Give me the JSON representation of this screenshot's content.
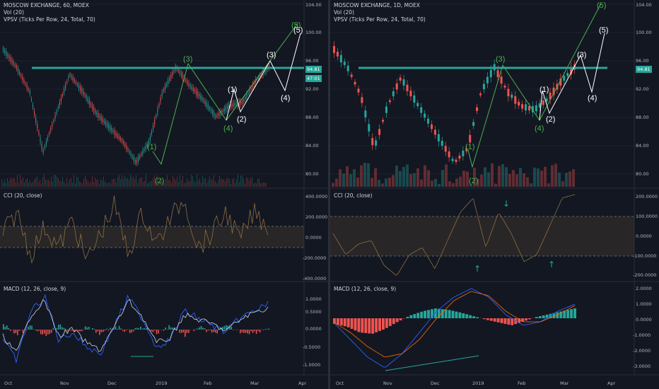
{
  "charts": [
    {
      "id": "left",
      "title": "MOSCOW EXCHANGE, 60, MOEX",
      "vol": "Vol (20)",
      "vpsv": "VPSV (Ticks Per Row, 24, Total, 70)",
      "cci": "CCI (20, close)",
      "macd": "MACD (12, 26, close, 9)",
      "price_badge": "94.81",
      "time_badge": "47:01",
      "price_axis": [
        "104.00",
        "100.00",
        "96.00",
        "92.00",
        "88.00",
        "84.00",
        "80.00"
      ],
      "cci_axis": [
        "400.0000",
        "200.0000",
        "0.0000",
        "-200.0000",
        "-400.0000"
      ],
      "macd_axis": [
        "1.0000",
        "0.5000",
        "0.0000",
        "-0.5000",
        "-1.0000"
      ],
      "time_axis": [
        "Oct",
        "Nov",
        "Dec",
        "2019",
        "Feb",
        "Mar",
        "Apr"
      ],
      "waves": [
        {
          "t": "(1)",
          "c": "g"
        },
        {
          "t": "(2)",
          "c": "g"
        },
        {
          "t": "(3)",
          "c": "g"
        },
        {
          "t": "(4)",
          "c": "g"
        },
        {
          "t": "(5)",
          "c": "g"
        },
        {
          "t": "(1)",
          "c": "w"
        },
        {
          "t": "(2)",
          "c": "w"
        },
        {
          "t": "(3)",
          "c": "w"
        },
        {
          "t": "(4)",
          "c": "w"
        },
        {
          "t": "(5)",
          "c": "w"
        }
      ]
    },
    {
      "id": "right",
      "title": "MOSCOW EXCHANGE, 1D, MOEX",
      "vol": "Vol (20)",
      "vpsv": "VPSV (Ticks Per Row, 24, Total, 70)",
      "cci": "CCI (20, close)",
      "macd": "MACD (12, 26, close, 9)",
      "price_badge": "94.81",
      "price_axis": [
        "104.00",
        "100.00",
        "96.00",
        "92.00",
        "88.00",
        "84.00",
        "80.00"
      ],
      "cci_axis": [
        "200.0000",
        "100.0000",
        "0.0000",
        "-100.0000",
        "-200.0000"
      ],
      "macd_axis": [
        "2.0000",
        "1.0000",
        "0.0000",
        "-1.0000",
        "-2.0000",
        "-3.0000"
      ],
      "time_axis": [
        "Oct",
        "Nov",
        "Dec",
        "2019",
        "Feb",
        "Mar",
        "Apr"
      ],
      "waves": [
        {
          "t": "(1)",
          "c": "g"
        },
        {
          "t": "(2)",
          "c": "g"
        },
        {
          "t": "(3)",
          "c": "g"
        },
        {
          "t": "(4)",
          "c": "g"
        },
        {
          "t": "(5)",
          "c": "g"
        },
        {
          "t": "(1)",
          "c": "w"
        },
        {
          "t": "(2)",
          "c": "w"
        },
        {
          "t": "(3)",
          "c": "w"
        },
        {
          "t": "(4)",
          "c": "w"
        },
        {
          "t": "(5)",
          "c": "w"
        }
      ]
    }
  ],
  "colors": {
    "bg": "#131722",
    "up": "#26a69a",
    "down": "#ef5350",
    "level": "#26a69a",
    "cci": "#8d6e40",
    "macd": "#2962ff",
    "signal": "#ff6d00",
    "wave_green": "#4caf50",
    "wave_white": "#ffffff"
  }
}
